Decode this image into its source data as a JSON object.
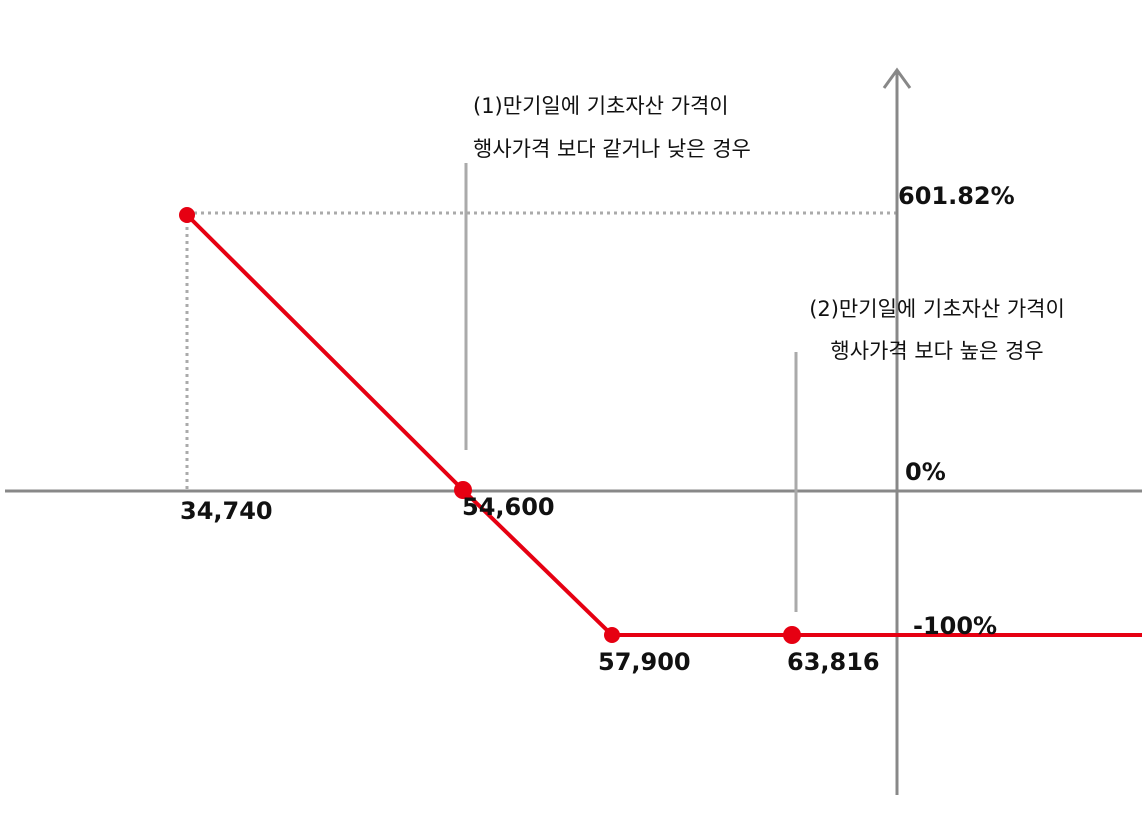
{
  "annotations": [
    {
      "lines": [
        "(1)만기일에 기초자산 가격이",
        "행사가격 보다 같거나 낮은 경우"
      ]
    },
    {
      "lines": [
        "(2)만기일에 기초자산 가격이",
        "행사가격 보다 높은 경우"
      ]
    }
  ],
  "y_labels": [
    "601.82%",
    "0%",
    "-100%"
  ],
  "x_labels": [
    "34,740",
    "54,600",
    "57,900",
    "63,816"
  ]
}
